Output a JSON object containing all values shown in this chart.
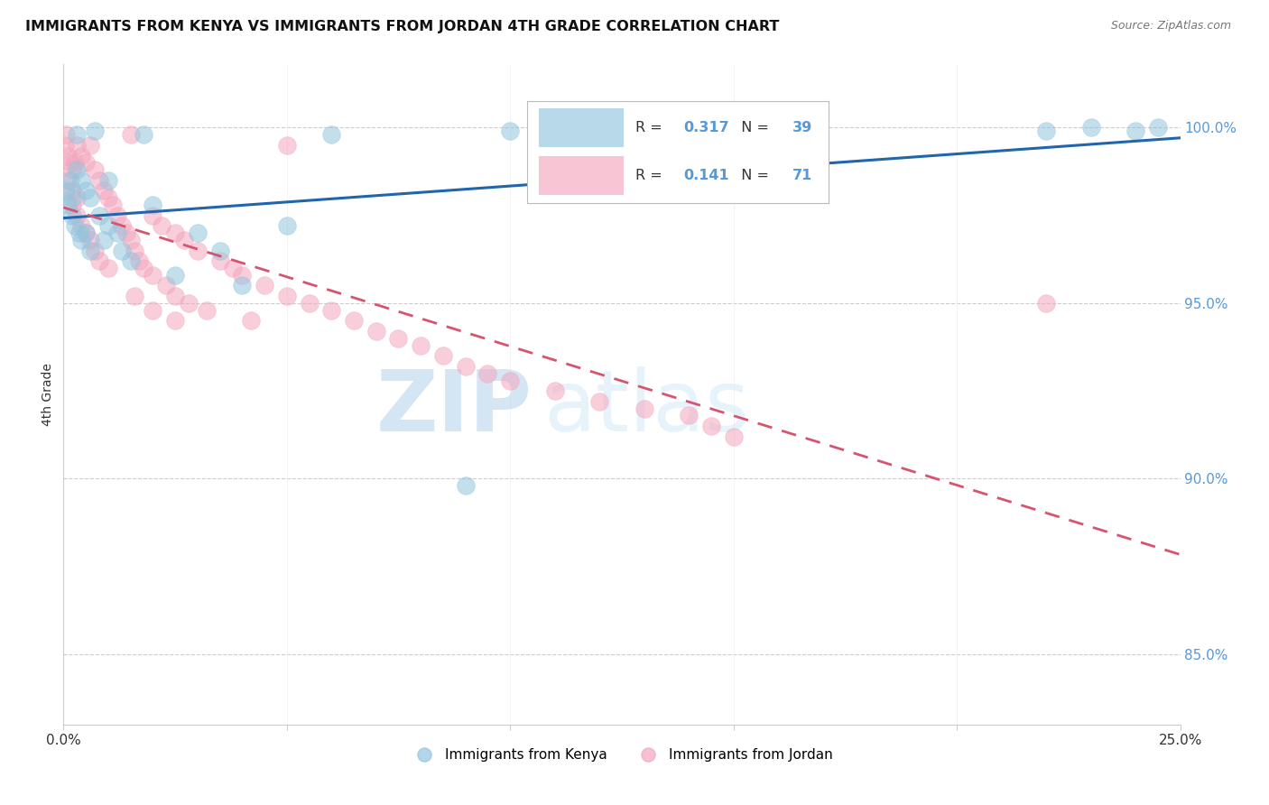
{
  "title": "IMMIGRANTS FROM KENYA VS IMMIGRANTS FROM JORDAN 4TH GRADE CORRELATION CHART",
  "source": "Source: ZipAtlas.com",
  "ylabel": "4th Grade",
  "y_ticks": [
    85.0,
    90.0,
    95.0,
    100.0
  ],
  "y_tick_labels": [
    "85.0%",
    "90.0%",
    "95.0%",
    "100.0%"
  ],
  "legend_kenya": "Immigrants from Kenya",
  "legend_jordan": "Immigrants from Jordan",
  "R_kenya": 0.317,
  "N_kenya": 39,
  "R_jordan": 0.141,
  "N_jordan": 71,
  "color_kenya": "#92c5de",
  "color_jordan": "#f4a6be",
  "trendline_kenya_color": "#2166ac",
  "trendline_jordan_color": "#d6546e",
  "trendline_jordan_dash": [
    6,
    4
  ],
  "watermark_zip": "ZIP",
  "watermark_atlas": "atlas",
  "color_right_axis": "#5599dd",
  "xlim": [
    0.0,
    0.25
  ],
  "ylim": [
    83.0,
    101.8
  ],
  "kenya_x": [
    0.0005,
    0.001,
    0.0015,
    0.002,
    0.002,
    0.0025,
    0.003,
    0.003,
    0.0035,
    0.004,
    0.004,
    0.005,
    0.005,
    0.006,
    0.006,
    0.007,
    0.008,
    0.009,
    0.01,
    0.01,
    0.012,
    0.013,
    0.015,
    0.018,
    0.02,
    0.025,
    0.03,
    0.035,
    0.04,
    0.05,
    0.06,
    0.09,
    0.1,
    0.13,
    0.15,
    0.22,
    0.23,
    0.24,
    0.245
  ],
  "kenya_y": [
    98.2,
    97.8,
    98.5,
    98.0,
    97.5,
    97.2,
    99.8,
    98.8,
    97.0,
    98.5,
    96.8,
    98.2,
    97.0,
    98.0,
    96.5,
    99.9,
    97.5,
    96.8,
    97.2,
    98.5,
    97.0,
    96.5,
    96.2,
    99.8,
    97.8,
    95.8,
    97.0,
    96.5,
    95.5,
    97.2,
    99.8,
    89.8,
    99.9,
    99.9,
    99.9,
    99.9,
    100.0,
    99.9,
    100.0
  ],
  "jordan_x": [
    0.0003,
    0.0005,
    0.001,
    0.001,
    0.0015,
    0.002,
    0.002,
    0.002,
    0.0025,
    0.003,
    0.003,
    0.003,
    0.004,
    0.004,
    0.005,
    0.005,
    0.006,
    0.006,
    0.007,
    0.007,
    0.008,
    0.008,
    0.009,
    0.01,
    0.01,
    0.011,
    0.012,
    0.013,
    0.014,
    0.015,
    0.015,
    0.016,
    0.017,
    0.018,
    0.02,
    0.02,
    0.022,
    0.023,
    0.025,
    0.025,
    0.027,
    0.028,
    0.03,
    0.032,
    0.035,
    0.038,
    0.04,
    0.042,
    0.045,
    0.05,
    0.05,
    0.055,
    0.06,
    0.065,
    0.07,
    0.075,
    0.08,
    0.085,
    0.09,
    0.095,
    0.1,
    0.11,
    0.12,
    0.13,
    0.14,
    0.145,
    0.15,
    0.016,
    0.02,
    0.025,
    0.22
  ],
  "jordan_y": [
    99.5,
    99.8,
    99.2,
    98.5,
    99.0,
    98.8,
    98.2,
    97.8,
    99.0,
    99.5,
    98.0,
    97.5,
    99.2,
    97.2,
    99.0,
    97.0,
    99.5,
    96.8,
    98.8,
    96.5,
    98.5,
    96.2,
    98.2,
    98.0,
    96.0,
    97.8,
    97.5,
    97.2,
    97.0,
    96.8,
    99.8,
    96.5,
    96.2,
    96.0,
    97.5,
    95.8,
    97.2,
    95.5,
    97.0,
    95.2,
    96.8,
    95.0,
    96.5,
    94.8,
    96.2,
    96.0,
    95.8,
    94.5,
    95.5,
    95.2,
    99.5,
    95.0,
    94.8,
    94.5,
    94.2,
    94.0,
    93.8,
    93.5,
    93.2,
    93.0,
    92.8,
    92.5,
    92.2,
    92.0,
    91.8,
    91.5,
    91.2,
    95.2,
    94.8,
    94.5,
    95.0
  ]
}
